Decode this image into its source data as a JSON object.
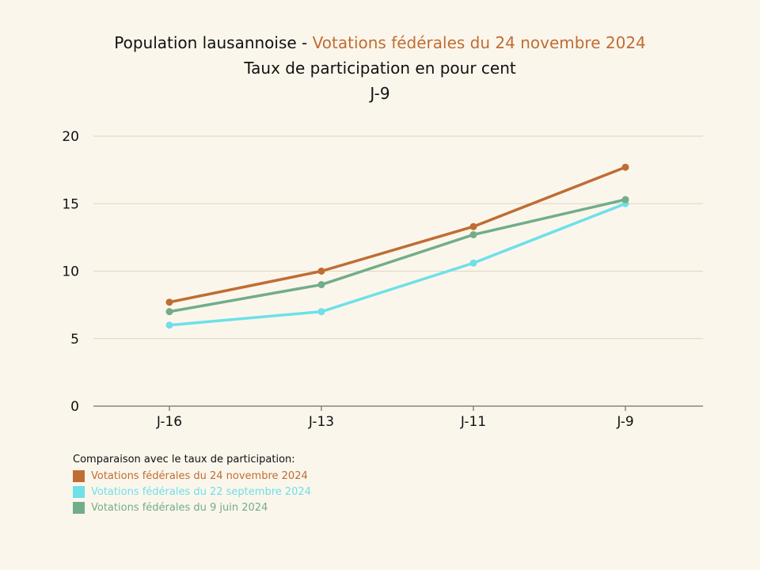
{
  "title": {
    "prefix": "Population lausannoise - ",
    "highlight": "Votations fédérales du 24 novembre 2024",
    "subtitle": "Taux de participation en pour cent",
    "period": "J-9"
  },
  "legend": {
    "heading": "Comparaison avec le taux de participation:"
  },
  "chart_data": {
    "type": "line",
    "categories": [
      "J-16",
      "J-13",
      "J-11",
      "J-9"
    ],
    "ylim": [
      0,
      20
    ],
    "yticks": [
      0,
      5,
      10,
      15,
      20
    ],
    "grid": true,
    "legend_position": "bottom-left",
    "series": [
      {
        "name": "Votations fédérales du 24 novembre 2024",
        "color": "#bf6d33",
        "values": [
          7.7,
          10.0,
          13.3,
          17.7
        ]
      },
      {
        "name": "Votations fédérales du 22 septembre 2024",
        "color": "#6ee0e8",
        "values": [
          6.0,
          7.0,
          10.6,
          15.0
        ]
      },
      {
        "name": "Votations fédérales du 9 juin 2024",
        "color": "#72ad8a",
        "values": [
          7.0,
          9.0,
          12.7,
          15.3
        ]
      }
    ]
  }
}
